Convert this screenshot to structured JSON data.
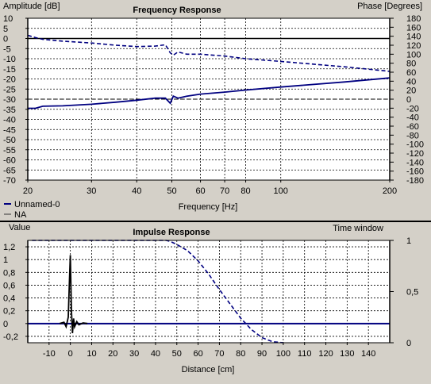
{
  "top_panel": {
    "title": "Frequency Response",
    "left_axis_label": "Amplitude [dB]",
    "right_axis_label": "Phase [Degrees]",
    "x_axis_label": "Frequency [Hz]",
    "legend": [
      {
        "name": "Unnamed-0",
        "color": "#000080",
        "style": "line"
      },
      {
        "name": "NA",
        "color": "#333333",
        "style": "line"
      }
    ]
  },
  "bottom_panel": {
    "title": "Impulse Response",
    "left_axis_label": "Value",
    "right_axis_label": "Time window",
    "x_axis_label": "Distance [cm]"
  },
  "chart_data": [
    {
      "type": "line",
      "title": "Frequency Response",
      "xlabel": "Frequency [Hz]",
      "ylabel": "Amplitude [dB]",
      "y2label": "Phase [Degrees]",
      "xscale": "log",
      "xlim": [
        20,
        200
      ],
      "ylim": [
        -70,
        10
      ],
      "y2lim": [
        -180,
        180
      ],
      "x_ticks": [
        20,
        30,
        40,
        50,
        60,
        70,
        80,
        100,
        200
      ],
      "x_tick_labels": [
        "20",
        "30",
        "40",
        "50",
        "60",
        "70",
        "80",
        "100",
        "200"
      ],
      "y_ticks": [
        10,
        5,
        0,
        -5,
        -10,
        -15,
        -20,
        -25,
        -30,
        -35,
        -40,
        -45,
        -50,
        -55,
        -60,
        -65,
        -70
      ],
      "y_tick_labels": [
        "10",
        "5",
        "0",
        "-5",
        "-10",
        "-15",
        "-20",
        "-25",
        "-30",
        "-35",
        "-40",
        "-45",
        "-50",
        "-55",
        "-60",
        "-65",
        "-70"
      ],
      "y2_ticks": [
        180,
        160,
        140,
        120,
        100,
        80,
        60,
        40,
        20,
        0,
        -20,
        -40,
        -60,
        -80,
        -100,
        -120,
        -140,
        -160,
        -180
      ],
      "y2_tick_labels": [
        "180",
        "160",
        "140",
        "120",
        "100",
        "80",
        "60",
        "40",
        "20",
        "0",
        "-20",
        "-40",
        "-60",
        "-80",
        "-100",
        "-120",
        "-140",
        "-160",
        "-180"
      ],
      "grid": true,
      "reference_lines": {
        "amplitude": 0,
        "phase": 0
      },
      "series": [
        {
          "name": "Unnamed-0",
          "axis": "left",
          "style": "solid",
          "color": "#000080",
          "x": [
            20,
            21,
            22,
            25,
            30,
            35,
            40,
            45,
            48,
            49.5,
            50.5,
            52,
            55,
            60,
            70,
            80,
            100,
            150,
            200
          ],
          "y": [
            -34.5,
            -34.5,
            -33.5,
            -33.3,
            -32.5,
            -31.5,
            -30.5,
            -29.5,
            -29.5,
            -32,
            -28.5,
            -29.5,
            -28.5,
            -27.5,
            -26.5,
            -25.5,
            -24,
            -21.5,
            -19.5
          ]
        },
        {
          "name": "",
          "axis": "right",
          "style": "dashed",
          "color": "#000080",
          "x": [
            20,
            21,
            22,
            25,
            30,
            35,
            40,
            45,
            48,
            49.5,
            50.5,
            52,
            55,
            60,
            70,
            80,
            100,
            150,
            200
          ],
          "y": [
            142,
            137,
            133,
            129,
            125,
            120,
            117,
            118,
            121,
            103,
            98,
            105,
            100,
            100,
            96,
            90,
            84,
            72,
            62
          ]
        }
      ]
    },
    {
      "type": "line",
      "title": "Impulse Response",
      "xlabel": "Distance [cm]",
      "ylabel": "Value",
      "y2label": "Time window",
      "xlim": [
        -20,
        150
      ],
      "ylim": [
        -0.3,
        1.3
      ],
      "y2lim": [
        0,
        1
      ],
      "x_ticks": [
        -10,
        0,
        10,
        20,
        30,
        40,
        50,
        60,
        70,
        80,
        90,
        100,
        110,
        120,
        130,
        140
      ],
      "x_tick_labels": [
        "-10",
        "0",
        "10",
        "20",
        "30",
        "40",
        "50",
        "60",
        "70",
        "80",
        "90",
        "100",
        "110",
        "120",
        "130",
        "140"
      ],
      "y_ticks": [
        1.2,
        1,
        0.8,
        0.6,
        0.4,
        0.2,
        0,
        -0.2
      ],
      "y_tick_labels": [
        "1,2",
        "1",
        "0,8",
        "0,6",
        "0,4",
        "0,2",
        "0",
        "-0,2"
      ],
      "y2_ticks": [
        1,
        0.5,
        0
      ],
      "y2_tick_labels": [
        "1",
        "0,5",
        "0"
      ],
      "grid": true,
      "reference_lines": {
        "value": 0
      },
      "series": [
        {
          "name": "",
          "axis": "left",
          "style": "solid",
          "color": "#000000",
          "x": [
            -5,
            -3,
            -2,
            -1,
            -0.5,
            0,
            0.5,
            1,
            1.5,
            2,
            3,
            4,
            6,
            8
          ],
          "y": [
            0,
            0.02,
            -0.05,
            0.1,
            0.6,
            1.07,
            0.2,
            -0.15,
            0.08,
            -0.05,
            0.03,
            -0.02,
            0.01,
            0
          ]
        },
        {
          "name": "",
          "axis": "right",
          "style": "dashed",
          "color": "#000080",
          "x": [
            -18,
            45,
            47,
            50,
            55,
            60,
            65,
            70,
            75,
            80,
            85,
            90,
            95,
            100
          ],
          "y": [
            1,
            1,
            0.99,
            0.96,
            0.9,
            0.8,
            0.67,
            0.52,
            0.38,
            0.24,
            0.13,
            0.05,
            0.01,
            0
          ]
        }
      ]
    }
  ]
}
